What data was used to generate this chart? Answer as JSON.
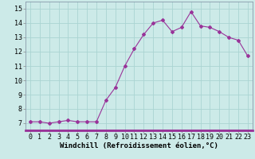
{
  "x": [
    0,
    1,
    2,
    3,
    4,
    5,
    6,
    7,
    8,
    9,
    10,
    11,
    12,
    13,
    14,
    15,
    16,
    17,
    18,
    19,
    20,
    21,
    22,
    23
  ],
  "y": [
    7.1,
    7.1,
    7.0,
    7.1,
    7.2,
    7.1,
    7.1,
    7.1,
    8.6,
    9.5,
    11.0,
    12.2,
    13.2,
    14.0,
    14.2,
    13.4,
    13.7,
    14.8,
    13.8,
    13.7,
    13.4,
    13.0,
    12.8,
    11.7
  ],
  "line_color": "#993399",
  "marker": "D",
  "marker_size": 2.0,
  "bg_color": "#cceae8",
  "grid_color": "#aad4d2",
  "xlabel": "Windchill (Refroidissement éolien,°C)",
  "xlabel_fontsize": 6.5,
  "tick_fontsize": 6,
  "xlim": [
    -0.5,
    23.5
  ],
  "ylim": [
    6.5,
    15.5
  ],
  "yticks": [
    7,
    8,
    9,
    10,
    11,
    12,
    13,
    14,
    15
  ],
  "xticks": [
    0,
    1,
    2,
    3,
    4,
    5,
    6,
    7,
    8,
    9,
    10,
    11,
    12,
    13,
    14,
    15,
    16,
    17,
    18,
    19,
    20,
    21,
    22,
    23
  ]
}
